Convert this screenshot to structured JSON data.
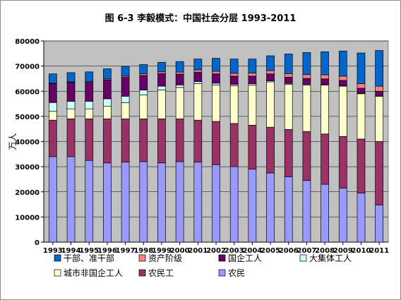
{
  "chart_data": {
    "type": "bar",
    "stacked": true,
    "title": "图 6-3 李毅模式：中国社会分层 1993-2011",
    "xlabel": "",
    "ylabel": "万人",
    "ylim": [
      0,
      80000
    ],
    "yticks": [
      0,
      10000,
      20000,
      30000,
      40000,
      50000,
      60000,
      70000,
      80000
    ],
    "grid": true,
    "legend_position": "bottom",
    "categories": [
      "1993",
      "1994",
      "1995",
      "1996",
      "1997",
      "1998",
      "1999",
      "2000",
      "2001",
      "2002",
      "2003",
      "2004",
      "2005",
      "2006",
      "2007",
      "2008",
      "2009",
      "2010",
      "2011"
    ],
    "series": [
      {
        "name": "农民",
        "color": "#9999ff",
        "values": [
          34000,
          34000,
          32500,
          31500,
          31800,
          32000,
          31500,
          32000,
          31800,
          30800,
          30000,
          29000,
          27500,
          26000,
          24500,
          23000,
          21500,
          19500,
          14800
        ]
      },
      {
        "name": "农民工",
        "color": "#993366",
        "values": [
          14500,
          15000,
          16500,
          17500,
          17200,
          17000,
          17500,
          17000,
          16700,
          17200,
          17200,
          17500,
          18200,
          18800,
          19500,
          20000,
          20500,
          21500,
          25200
        ]
      },
      {
        "name": "城市非国企工人",
        "color": "#ffffcc",
        "values": [
          3500,
          4000,
          4000,
          5000,
          6500,
          9500,
          11500,
          12500,
          14500,
          14500,
          15000,
          16000,
          18000,
          18000,
          18500,
          19500,
          20000,
          18000,
          18000
        ]
      },
      {
        "name": "大集体工人",
        "color": "#ccffff",
        "values": [
          3500,
          3000,
          3000,
          3000,
          2500,
          2000,
          1500,
          1000,
          800,
          700,
          500,
          500,
          400,
          300,
          300,
          200,
          200,
          200,
          100
        ]
      },
      {
        "name": "国企工人",
        "color": "#660066",
        "values": [
          7500,
          7500,
          7500,
          7500,
          7500,
          5800,
          5000,
          4300,
          3800,
          3700,
          3300,
          3000,
          2800,
          2500,
          2300,
          2200,
          2100,
          2000,
          1900
        ]
      },
      {
        "name": "资产阶级",
        "color": "#ff8080",
        "values": [
          200,
          200,
          300,
          400,
          500,
          600,
          700,
          800,
          900,
          1000,
          1100,
          1200,
          1300,
          1400,
          1500,
          1600,
          1700,
          1800,
          2000
        ]
      },
      {
        "name": "干部、准干部",
        "color": "#0066cc",
        "values": [
          3700,
          3700,
          3900,
          4000,
          3900,
          3700,
          3800,
          4200,
          4300,
          5200,
          5700,
          5600,
          5900,
          7800,
          8800,
          9200,
          10000,
          12200,
          14200
        ]
      }
    ]
  }
}
